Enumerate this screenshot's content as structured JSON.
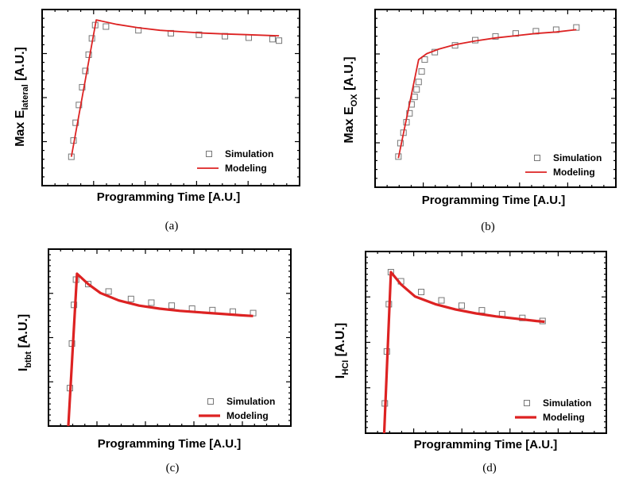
{
  "chart_data": [
    {
      "id": "a",
      "type": "scatter",
      "caption": "(a)",
      "xlabel": "Programming Time [A.U.]",
      "ylabel_main": "Max E",
      "ylabel_sub": "lateral",
      "xlim": [
        0,
        10
      ],
      "ylim": [
        0,
        10
      ],
      "yscale": "linear",
      "legend": {
        "placement": "bottom-right",
        "entries": [
          "Simulation",
          "Modeling"
        ]
      },
      "series": [
        {
          "name": "Simulation",
          "marker": "open-square",
          "color": "#777777",
          "x": [
            0.4,
            0.5,
            0.6,
            0.75,
            0.9,
            1.05,
            1.2,
            1.35,
            1.5,
            2.0,
            3.5,
            5.0,
            6.3,
            7.5,
            8.6,
            9.7,
            10.0
          ],
          "y": [
            1.0,
            2.1,
            3.3,
            4.5,
            5.7,
            6.8,
            7.9,
            9.0,
            9.9,
            9.8,
            9.55,
            9.35,
            9.25,
            9.15,
            9.05,
            8.95,
            8.85
          ]
        },
        {
          "name": "Modeling",
          "style": "thin-line",
          "color": "#dd2222",
          "x": [
            0.4,
            1.55,
            2.5,
            3.5,
            4.5,
            5.5,
            6.5,
            7.5,
            8.5,
            9.5,
            10.0
          ],
          "y": [
            1.0,
            10.25,
            9.95,
            9.72,
            9.55,
            9.45,
            9.36,
            9.3,
            9.25,
            9.2,
            9.18
          ]
        }
      ]
    },
    {
      "id": "b",
      "type": "scatter",
      "caption": "(b)",
      "xlabel": "Programming Time [A.U.]",
      "ylabel_main": "Max E",
      "ylabel_sub": "OX",
      "xlim": [
        0,
        10
      ],
      "ylim": [
        0,
        10
      ],
      "yscale": "linear",
      "legend": {
        "placement": "bottom-right",
        "entries": [
          "Simulation",
          "Modeling"
        ]
      },
      "series": [
        {
          "name": "Simulation",
          "marker": "open-square",
          "color": "#777777",
          "x": [
            0.2,
            0.3,
            0.45,
            0.6,
            0.75,
            0.85,
            1.0,
            1.1,
            1.2,
            1.35,
            1.5,
            2.0,
            3.0,
            4.0,
            5.0,
            6.0,
            7.0,
            8.0,
            9.0
          ],
          "y": [
            1.1,
            2.0,
            2.7,
            3.4,
            4.0,
            4.6,
            5.1,
            5.6,
            6.1,
            6.8,
            7.6,
            8.1,
            8.55,
            8.9,
            9.15,
            9.35,
            9.5,
            9.6,
            9.75
          ]
        },
        {
          "name": "Modeling",
          "style": "thin-line",
          "color": "#dd2222",
          "x": [
            0.2,
            1.2,
            1.6,
            2.2,
            3.0,
            4.0,
            5.0,
            6.0,
            7.0,
            8.0,
            9.0
          ],
          "y": [
            1.0,
            7.6,
            8.0,
            8.3,
            8.6,
            8.85,
            9.05,
            9.2,
            9.35,
            9.45,
            9.6
          ]
        }
      ]
    },
    {
      "id": "c",
      "type": "scatter",
      "caption": "(c)",
      "xlabel": "Programming Time [A.U.]",
      "ylabel_main": "I",
      "ylabel_sub": "btbt",
      "xlim": [
        0,
        10
      ],
      "ylim": [
        0,
        10
      ],
      "yscale": "log",
      "legend": {
        "placement": "bottom-right",
        "entries": [
          "Simulation",
          "Modeling"
        ]
      },
      "series": [
        {
          "name": "Simulation",
          "marker": "open-square",
          "color": "#777777",
          "x": [
            0.1,
            0.2,
            0.3,
            0.4,
            1.0,
            2.0,
            3.1,
            4.1,
            5.1,
            6.1,
            7.1,
            8.1,
            9.1
          ],
          "y": [
            1.6,
            4.6,
            7.2,
            8.9,
            8.6,
            8.1,
            7.6,
            7.35,
            7.15,
            6.95,
            6.85,
            6.75,
            6.65
          ]
        },
        {
          "name": "Modeling",
          "style": "thick-line",
          "color": "#dd2222",
          "x": [
            0.0,
            0.45,
            1.0,
            1.6,
            2.5,
            3.5,
            4.5,
            5.5,
            6.5,
            7.5,
            8.5,
            9.1
          ],
          "y": [
            -1.5,
            9.3,
            8.6,
            8.0,
            7.5,
            7.15,
            6.95,
            6.8,
            6.7,
            6.6,
            6.5,
            6.45
          ]
        }
      ]
    },
    {
      "id": "d",
      "type": "scatter",
      "caption": "(d)",
      "xlabel": "Programming Time [A.U.]",
      "ylabel_main": "I",
      "ylabel_sub": "HCI",
      "xlim": [
        0,
        10
      ],
      "ylim": [
        0,
        10
      ],
      "yscale": "log",
      "legend": {
        "placement": "bottom-right",
        "entries": [
          "Simulation",
          "Modeling"
        ]
      },
      "series": [
        {
          "name": "Simulation",
          "marker": "open-square",
          "color": "#777777",
          "x": [
            0.0,
            0.1,
            0.2,
            0.3,
            0.8,
            1.8,
            2.8,
            3.8,
            4.8,
            5.8,
            6.8,
            7.8
          ],
          "y": [
            1.0,
            4.4,
            7.5,
            9.6,
            9.0,
            8.3,
            7.75,
            7.4,
            7.1,
            6.85,
            6.6,
            6.4
          ]
        },
        {
          "name": "Modeling",
          "style": "thick-line",
          "color": "#dd2222",
          "x": [
            -0.05,
            0.3,
            0.8,
            1.5,
            2.5,
            3.5,
            4.5,
            5.5,
            6.5,
            7.5,
            7.9
          ],
          "y": [
            -1.5,
            9.6,
            8.8,
            8.0,
            7.5,
            7.15,
            6.9,
            6.7,
            6.55,
            6.4,
            6.35
          ]
        }
      ]
    }
  ]
}
